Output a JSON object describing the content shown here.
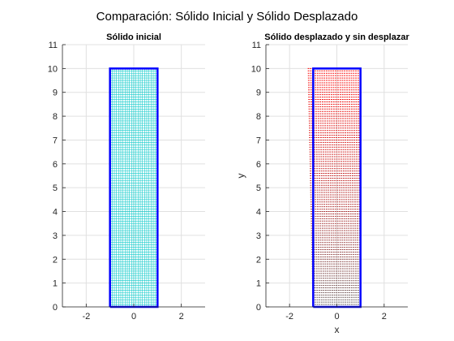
{
  "figure": {
    "suptitle": "Comparación: Sólido Inicial y Sólido Desplazado"
  },
  "chart_data": [
    {
      "type": "scatter",
      "title": "Sólido inicial",
      "xlabel": "",
      "ylabel": "",
      "xlim": [
        -3,
        3
      ],
      "ylim": [
        0,
        11
      ],
      "xticks": [
        -2,
        0,
        2
      ],
      "yticks": [
        0,
        1,
        2,
        3,
        4,
        5,
        6,
        7,
        8,
        9,
        10,
        11
      ],
      "grid": true,
      "mesh": {
        "x_range": [
          -1,
          1
        ],
        "y_range": [
          0,
          10
        ],
        "color": "#00c8c8"
      },
      "outline": {
        "x": [
          -1,
          1,
          1,
          -1,
          -1
        ],
        "y": [
          0,
          0,
          10,
          10,
          0
        ],
        "color": "#0000ff"
      }
    },
    {
      "type": "scatter",
      "title": "Sólido desplazado y sin desplazar",
      "xlabel": "x",
      "ylabel": "y",
      "xlim": [
        -3,
        3
      ],
      "ylim": [
        0,
        11
      ],
      "xticks": [
        -2,
        0,
        2
      ],
      "yticks": [
        0,
        1,
        2,
        3,
        4,
        5,
        6,
        7,
        8,
        9,
        10,
        11
      ],
      "grid": true,
      "displaced_mesh": {
        "x_range_bottom": [
          -1,
          1
        ],
        "x_range_top": [
          -1.2,
          0.9
        ],
        "y_range": [
          0,
          10
        ],
        "color_bottom": "#606060",
        "color_top": "#ff0000"
      },
      "outline": {
        "x": [
          -1,
          1,
          1,
          -1,
          -1
        ],
        "y": [
          0,
          0,
          10,
          10,
          0
        ],
        "color": "#0000ff"
      }
    }
  ]
}
